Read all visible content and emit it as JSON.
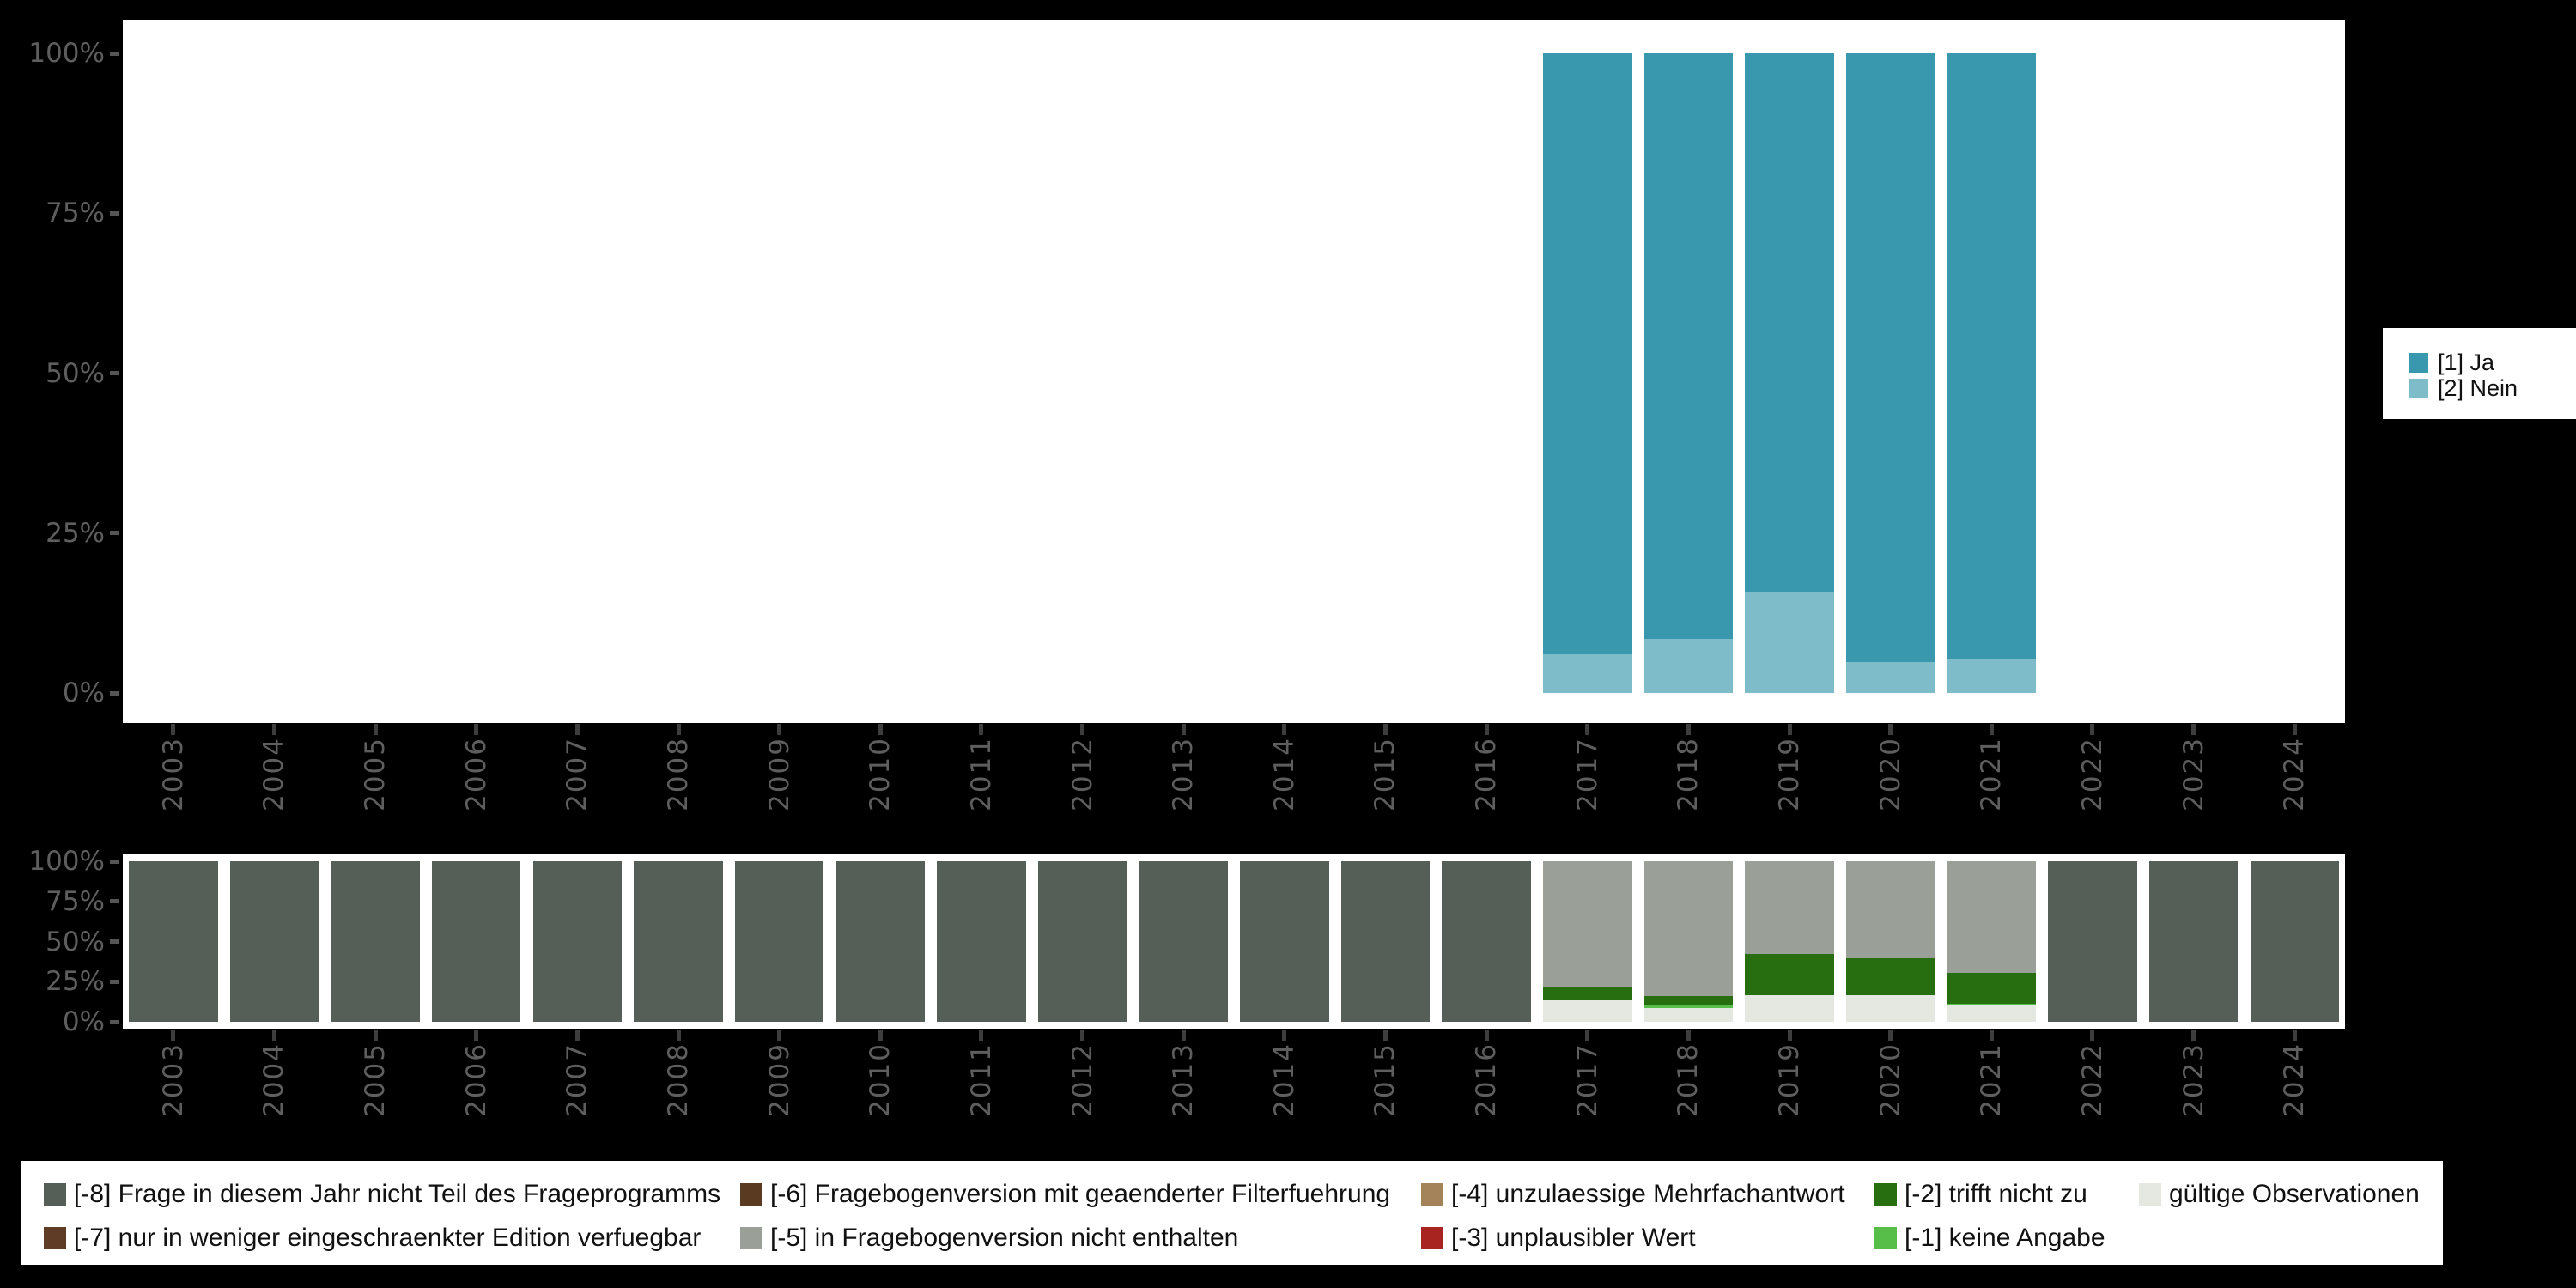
{
  "background": "#000000",
  "chart_data": [
    {
      "id": "answers",
      "type": "bar",
      "stacked": true,
      "title": "",
      "categories": [
        "2003",
        "2004",
        "2005",
        "2006",
        "2007",
        "2008",
        "2009",
        "2010",
        "2011",
        "2012",
        "2013",
        "2014",
        "2015",
        "2016",
        "2017",
        "2018",
        "2019",
        "2020",
        "2021",
        "2022",
        "2023",
        "2024"
      ],
      "y_ticks": [
        "0%",
        "25%",
        "50%",
        "75%",
        "100%"
      ],
      "ylim": [
        0,
        100
      ],
      "grid": false,
      "legend_position": "right",
      "series": [
        {
          "name": "[2] Nein",
          "color": "#7fbcca",
          "values": {
            "2017": 6.0,
            "2018": 8.5,
            "2019": 15.7,
            "2020": 4.9,
            "2021": 5.2
          }
        },
        {
          "name": "[1] Ja",
          "color": "#3997ae",
          "values": {
            "2017": 94.0,
            "2018": 91.5,
            "2019": 84.3,
            "2020": 95.1,
            "2021": 94.8
          }
        }
      ],
      "legend": [
        {
          "label": "[1] Ja",
          "color": "#3997ae"
        },
        {
          "label": "[2] Nein",
          "color": "#7fbcca"
        }
      ]
    },
    {
      "id": "missings",
      "type": "bar",
      "stacked": true,
      "title": "",
      "categories": [
        "2003",
        "2004",
        "2005",
        "2006",
        "2007",
        "2008",
        "2009",
        "2010",
        "2011",
        "2012",
        "2013",
        "2014",
        "2015",
        "2016",
        "2017",
        "2018",
        "2019",
        "2020",
        "2021",
        "2022",
        "2023",
        "2024"
      ],
      "y_ticks": [
        "0%",
        "25%",
        "50%",
        "75%",
        "100%"
      ],
      "ylim": [
        0,
        100
      ],
      "grid": false,
      "legend_position": "bottom",
      "series": [
        {
          "name": "gültige Observationen",
          "color": "#e4e8e1",
          "values": {
            "2017": 13.2,
            "2018": 8.8,
            "2019": 16.4,
            "2020": 16.4,
            "2021": 10.0
          }
        },
        {
          "name": "[-1] keine Angabe",
          "color": "#57bf49",
          "values": {
            "2018": 1.2,
            "2021": 1.2
          }
        },
        {
          "name": "[-2] trifft nicht zu",
          "color": "#266e10",
          "values": {
            "2017": 8.9,
            "2018": 5.9,
            "2019": 25.9,
            "2020": 23.2,
            "2021": 19.2
          }
        },
        {
          "name": "[-5] in Fragebogenversion nicht enthalten",
          "color": "#9aa098",
          "values": {
            "2017": 77.9,
            "2018": 84.1,
            "2019": 57.7,
            "2020": 60.4,
            "2021": 69.6
          }
        },
        {
          "name": "[-8] Frage in diesem Jahr nicht Teil des Frageprogramms",
          "color": "#565f57",
          "values": {
            "2003": 100,
            "2004": 100,
            "2005": 100,
            "2006": 100,
            "2007": 100,
            "2008": 100,
            "2009": 100,
            "2010": 100,
            "2011": 100,
            "2012": 100,
            "2013": 100,
            "2014": 100,
            "2015": 100,
            "2016": 100,
            "2022": 100,
            "2023": 100,
            "2024": 100
          }
        }
      ],
      "legend": [
        {
          "label": "[-8] Frage in diesem Jahr nicht Teil des Frageprogramms",
          "color": "#565f57"
        },
        {
          "label": "[-7] nur in weniger eingeschraenkter Edition verfuegbar",
          "color": "#5e3c26"
        },
        {
          "label": "[-6] Fragebogenversion mit geaenderter Filterfuehrung",
          "color": "#5a3a20"
        },
        {
          "label": "[-5] in Fragebogenversion nicht enthalten",
          "color": "#9aa098"
        },
        {
          "label": "[-4] unzulaessige Mehrfachantwort",
          "color": "#a5835a"
        },
        {
          "label": "[-3] unplausibler Wert",
          "color": "#a82421"
        },
        {
          "label": "[-2] trifft nicht zu",
          "color": "#266e10"
        },
        {
          "label": "[-1] keine Angabe",
          "color": "#57bf49"
        },
        {
          "label": "gültige Observationen",
          "color": "#e4e8e1"
        }
      ]
    }
  ]
}
